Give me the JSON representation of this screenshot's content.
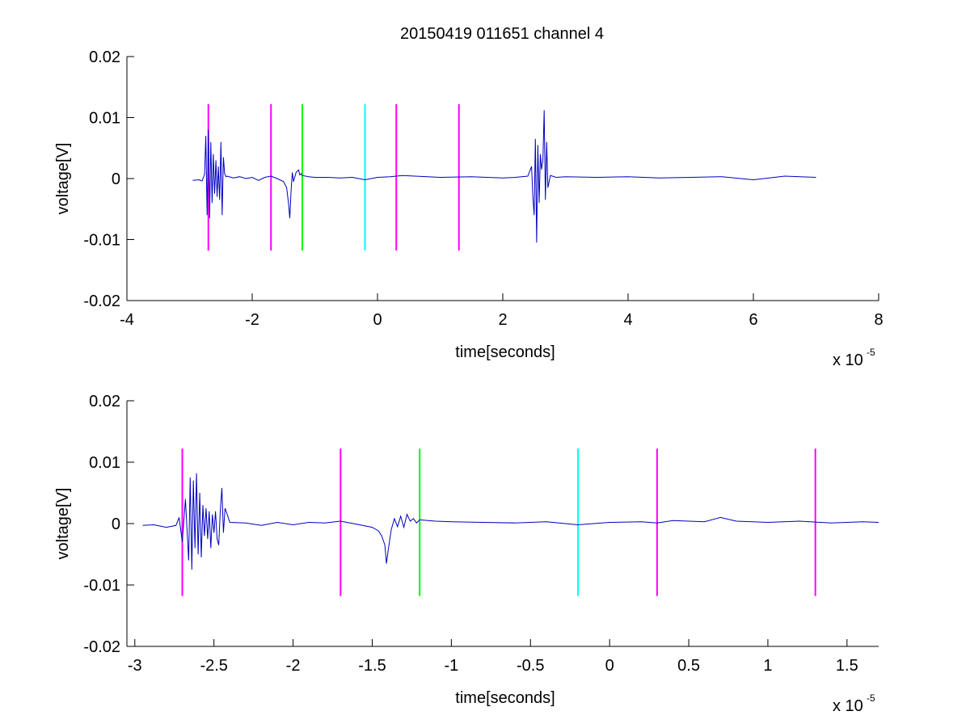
{
  "figure": {
    "title": "20150419 011651 channel 4"
  },
  "chart_data": [
    {
      "type": "line",
      "xlabel": "time[seconds]",
      "ylabel": "voltage[V]",
      "x_multiplier_label": "x 10",
      "x_multiplier_exponent": "-5",
      "xlim": [
        -4,
        8
      ],
      "ylim": [
        -0.02,
        0.02
      ],
      "xticks": [
        -4,
        -2,
        0,
        2,
        4,
        6,
        8
      ],
      "xtick_labels": [
        "-4",
        "-2",
        "0",
        "2",
        "4",
        "6",
        "8"
      ],
      "yticks": [
        -0.02,
        -0.01,
        0,
        0.01,
        0.02
      ],
      "ytick_labels": [
        "-0.02",
        "-0.01",
        "0",
        "0.01",
        "0.02"
      ],
      "grid": false,
      "series": [
        {
          "color": "#0000c0",
          "x": [
            -2.95,
            -2.85,
            -2.8,
            -2.76,
            -2.74,
            -2.72,
            -2.7,
            -2.68,
            -2.66,
            -2.64,
            -2.62,
            -2.6,
            -2.58,
            -2.56,
            -2.54,
            -2.52,
            -2.5,
            -2.48,
            -2.46,
            -2.44,
            -2.42,
            -2.4,
            -2.3,
            -2.2,
            -2.1,
            -2.0,
            -1.9,
            -1.8,
            -1.7,
            -1.6,
            -1.5,
            -1.45,
            -1.42,
            -1.4,
            -1.38,
            -1.36,
            -1.34,
            -1.3,
            -1.26,
            -1.24,
            -1.22,
            -1.2,
            -1.1,
            -1.0,
            -0.8,
            -0.6,
            -0.4,
            -0.2,
            0.0,
            0.2,
            0.4,
            0.6,
            0.8,
            1.0,
            1.5,
            2.0,
            2.2,
            2.4,
            2.46,
            2.48,
            2.5,
            2.52,
            2.54,
            2.56,
            2.58,
            2.6,
            2.62,
            2.64,
            2.66,
            2.68,
            2.7,
            2.72,
            2.76,
            2.85,
            3.0,
            3.5,
            4.0,
            4.5,
            5.0,
            5.5,
            6.0,
            6.5,
            7.0
          ],
          "values": [
            -0.0003,
            -0.0002,
            -0.0004,
            0.0007,
            0.007,
            -0.006,
            0.008,
            -0.0065,
            0.006,
            -0.004,
            0.004,
            -0.0025,
            0.003,
            -0.003,
            0.002,
            -0.0035,
            0.006,
            -0.006,
            0.0035,
            0.0008,
            0.0003,
            0.0004,
            0.0001,
            0.0003,
            0.0,
            0.0002,
            -0.0003,
            0.0002,
            0.0004,
            0.0,
            -0.0005,
            -0.0015,
            -0.004,
            -0.0065,
            -0.002,
            0.001,
            -0.0005,
            0.001,
            0.0014,
            0.0006,
            0.0008,
            0.0005,
            0.0003,
            0.0002,
            0.0002,
            0.0001,
            0.0002,
            -0.0002,
            0.0002,
            0.0003,
            0.0005,
            0.0004,
            0.0003,
            0.0002,
            0.0003,
            0.0001,
            0.0002,
            0.0004,
            0.002,
            -0.003,
            -0.006,
            0.0065,
            -0.0105,
            0.0055,
            -0.004,
            0.004,
            0.0015,
            0.003,
            0.0112,
            -0.0035,
            0.006,
            -0.0015,
            0.0005,
            0.0002,
            0.0003,
            0.0002,
            0.0003,
            0.0001,
            0.0002,
            0.0003,
            -0.0002,
            0.0004,
            0.0002
          ]
        }
      ],
      "markers": [
        {
          "x": -2.7,
          "color": "#ff00ff",
          "y_from": -0.0118,
          "y_to": 0.0122
        },
        {
          "x": -1.7,
          "color": "#ff00ff",
          "y_from": -0.0118,
          "y_to": 0.0122
        },
        {
          "x": -1.2,
          "color": "#00ff00",
          "y_from": -0.0118,
          "y_to": 0.0122
        },
        {
          "x": -0.2,
          "color": "#00ffff",
          "y_from": -0.0118,
          "y_to": 0.0122
        },
        {
          "x": 0.3,
          "color": "#ff00ff",
          "y_from": -0.0118,
          "y_to": 0.0122
        },
        {
          "x": 1.3,
          "color": "#ff00ff",
          "y_from": -0.0118,
          "y_to": 0.0122
        }
      ]
    },
    {
      "type": "line",
      "xlabel": "time[seconds]",
      "ylabel": "voltage[V]",
      "x_multiplier_label": "x 10",
      "x_multiplier_exponent": "-5",
      "xlim": [
        -3.05,
        1.7
      ],
      "ylim": [
        -0.02,
        0.02
      ],
      "xticks": [
        -3,
        -2.5,
        -2,
        -1.5,
        -1,
        -0.5,
        0,
        0.5,
        1,
        1.5
      ],
      "xtick_labels": [
        "-3",
        "-2.5",
        "-2",
        "-1.5",
        "-1",
        "-0.5",
        "0",
        "0.5",
        "1",
        "1.5"
      ],
      "yticks": [
        -0.02,
        -0.01,
        0,
        0.01,
        0.02
      ],
      "ytick_labels": [
        "-0.02",
        "-0.01",
        "0",
        "0.01",
        "0.02"
      ],
      "grid": false,
      "series": [
        {
          "color": "#0000c0",
          "x": [
            -2.95,
            -2.88,
            -2.8,
            -2.74,
            -2.72,
            -2.7,
            -2.68,
            -2.66,
            -2.65,
            -2.64,
            -2.63,
            -2.62,
            -2.61,
            -2.6,
            -2.59,
            -2.58,
            -2.57,
            -2.56,
            -2.55,
            -2.54,
            -2.53,
            -2.52,
            -2.51,
            -2.5,
            -2.49,
            -2.48,
            -2.47,
            -2.46,
            -2.45,
            -2.44,
            -2.43,
            -2.42,
            -2.4,
            -2.3,
            -2.2,
            -2.1,
            -2.0,
            -1.9,
            -1.8,
            -1.7,
            -1.6,
            -1.5,
            -1.46,
            -1.44,
            -1.42,
            -1.41,
            -1.4,
            -1.38,
            -1.36,
            -1.34,
            -1.32,
            -1.3,
            -1.28,
            -1.26,
            -1.24,
            -1.22,
            -1.2,
            -1.1,
            -1.0,
            -0.8,
            -0.6,
            -0.4,
            -0.2,
            0.0,
            0.2,
            0.3,
            0.4,
            0.6,
            0.7,
            0.8,
            1.0,
            1.2,
            1.4,
            1.6,
            1.7
          ],
          "values": [
            -0.0003,
            -0.0002,
            -0.0006,
            -0.0003,
            0.001,
            -0.003,
            0.004,
            -0.006,
            0.0075,
            -0.0075,
            0.007,
            -0.004,
            0.0082,
            -0.005,
            0.005,
            -0.0055,
            0.003,
            -0.002,
            0.0025,
            -0.0025,
            0.002,
            -0.004,
            0.0015,
            -0.0015,
            0.002,
            -0.0025,
            -0.0035,
            0.002,
            0.0058,
            -0.0015,
            0.0025,
            0.0018,
            0.0002,
            0.0001,
            -0.0003,
            0.0002,
            -0.0002,
            0.0002,
            0.0001,
            0.0004,
            -0.0001,
            -0.0006,
            -0.0012,
            -0.002,
            -0.0035,
            -0.0065,
            -0.0045,
            -0.001,
            0.0008,
            -0.0005,
            0.0012,
            -0.0006,
            0.0015,
            0.0004,
            0.0008,
            0.0001,
            0.0006,
            0.0004,
            0.0003,
            0.0002,
            0.0001,
            0.0003,
            -0.0002,
            0.0002,
            0.0003,
            0.0001,
            0.0005,
            0.0003,
            0.001,
            0.0004,
            0.0002,
            0.0004,
            0.0001,
            0.0003,
            0.0002
          ]
        }
      ],
      "markers": [
        {
          "x": -2.7,
          "color": "#ff00ff",
          "y_from": -0.0118,
          "y_to": 0.0122
        },
        {
          "x": -1.7,
          "color": "#ff00ff",
          "y_from": -0.0118,
          "y_to": 0.0122
        },
        {
          "x": -1.2,
          "color": "#00ff00",
          "y_from": -0.0118,
          "y_to": 0.0122
        },
        {
          "x": -0.2,
          "color": "#00ffff",
          "y_from": -0.0118,
          "y_to": 0.0122
        },
        {
          "x": 0.3,
          "color": "#ff00ff",
          "y_from": -0.0118,
          "y_to": 0.0122
        },
        {
          "x": 1.3,
          "color": "#ff00ff",
          "y_from": -0.0118,
          "y_to": 0.0122
        }
      ]
    }
  ]
}
